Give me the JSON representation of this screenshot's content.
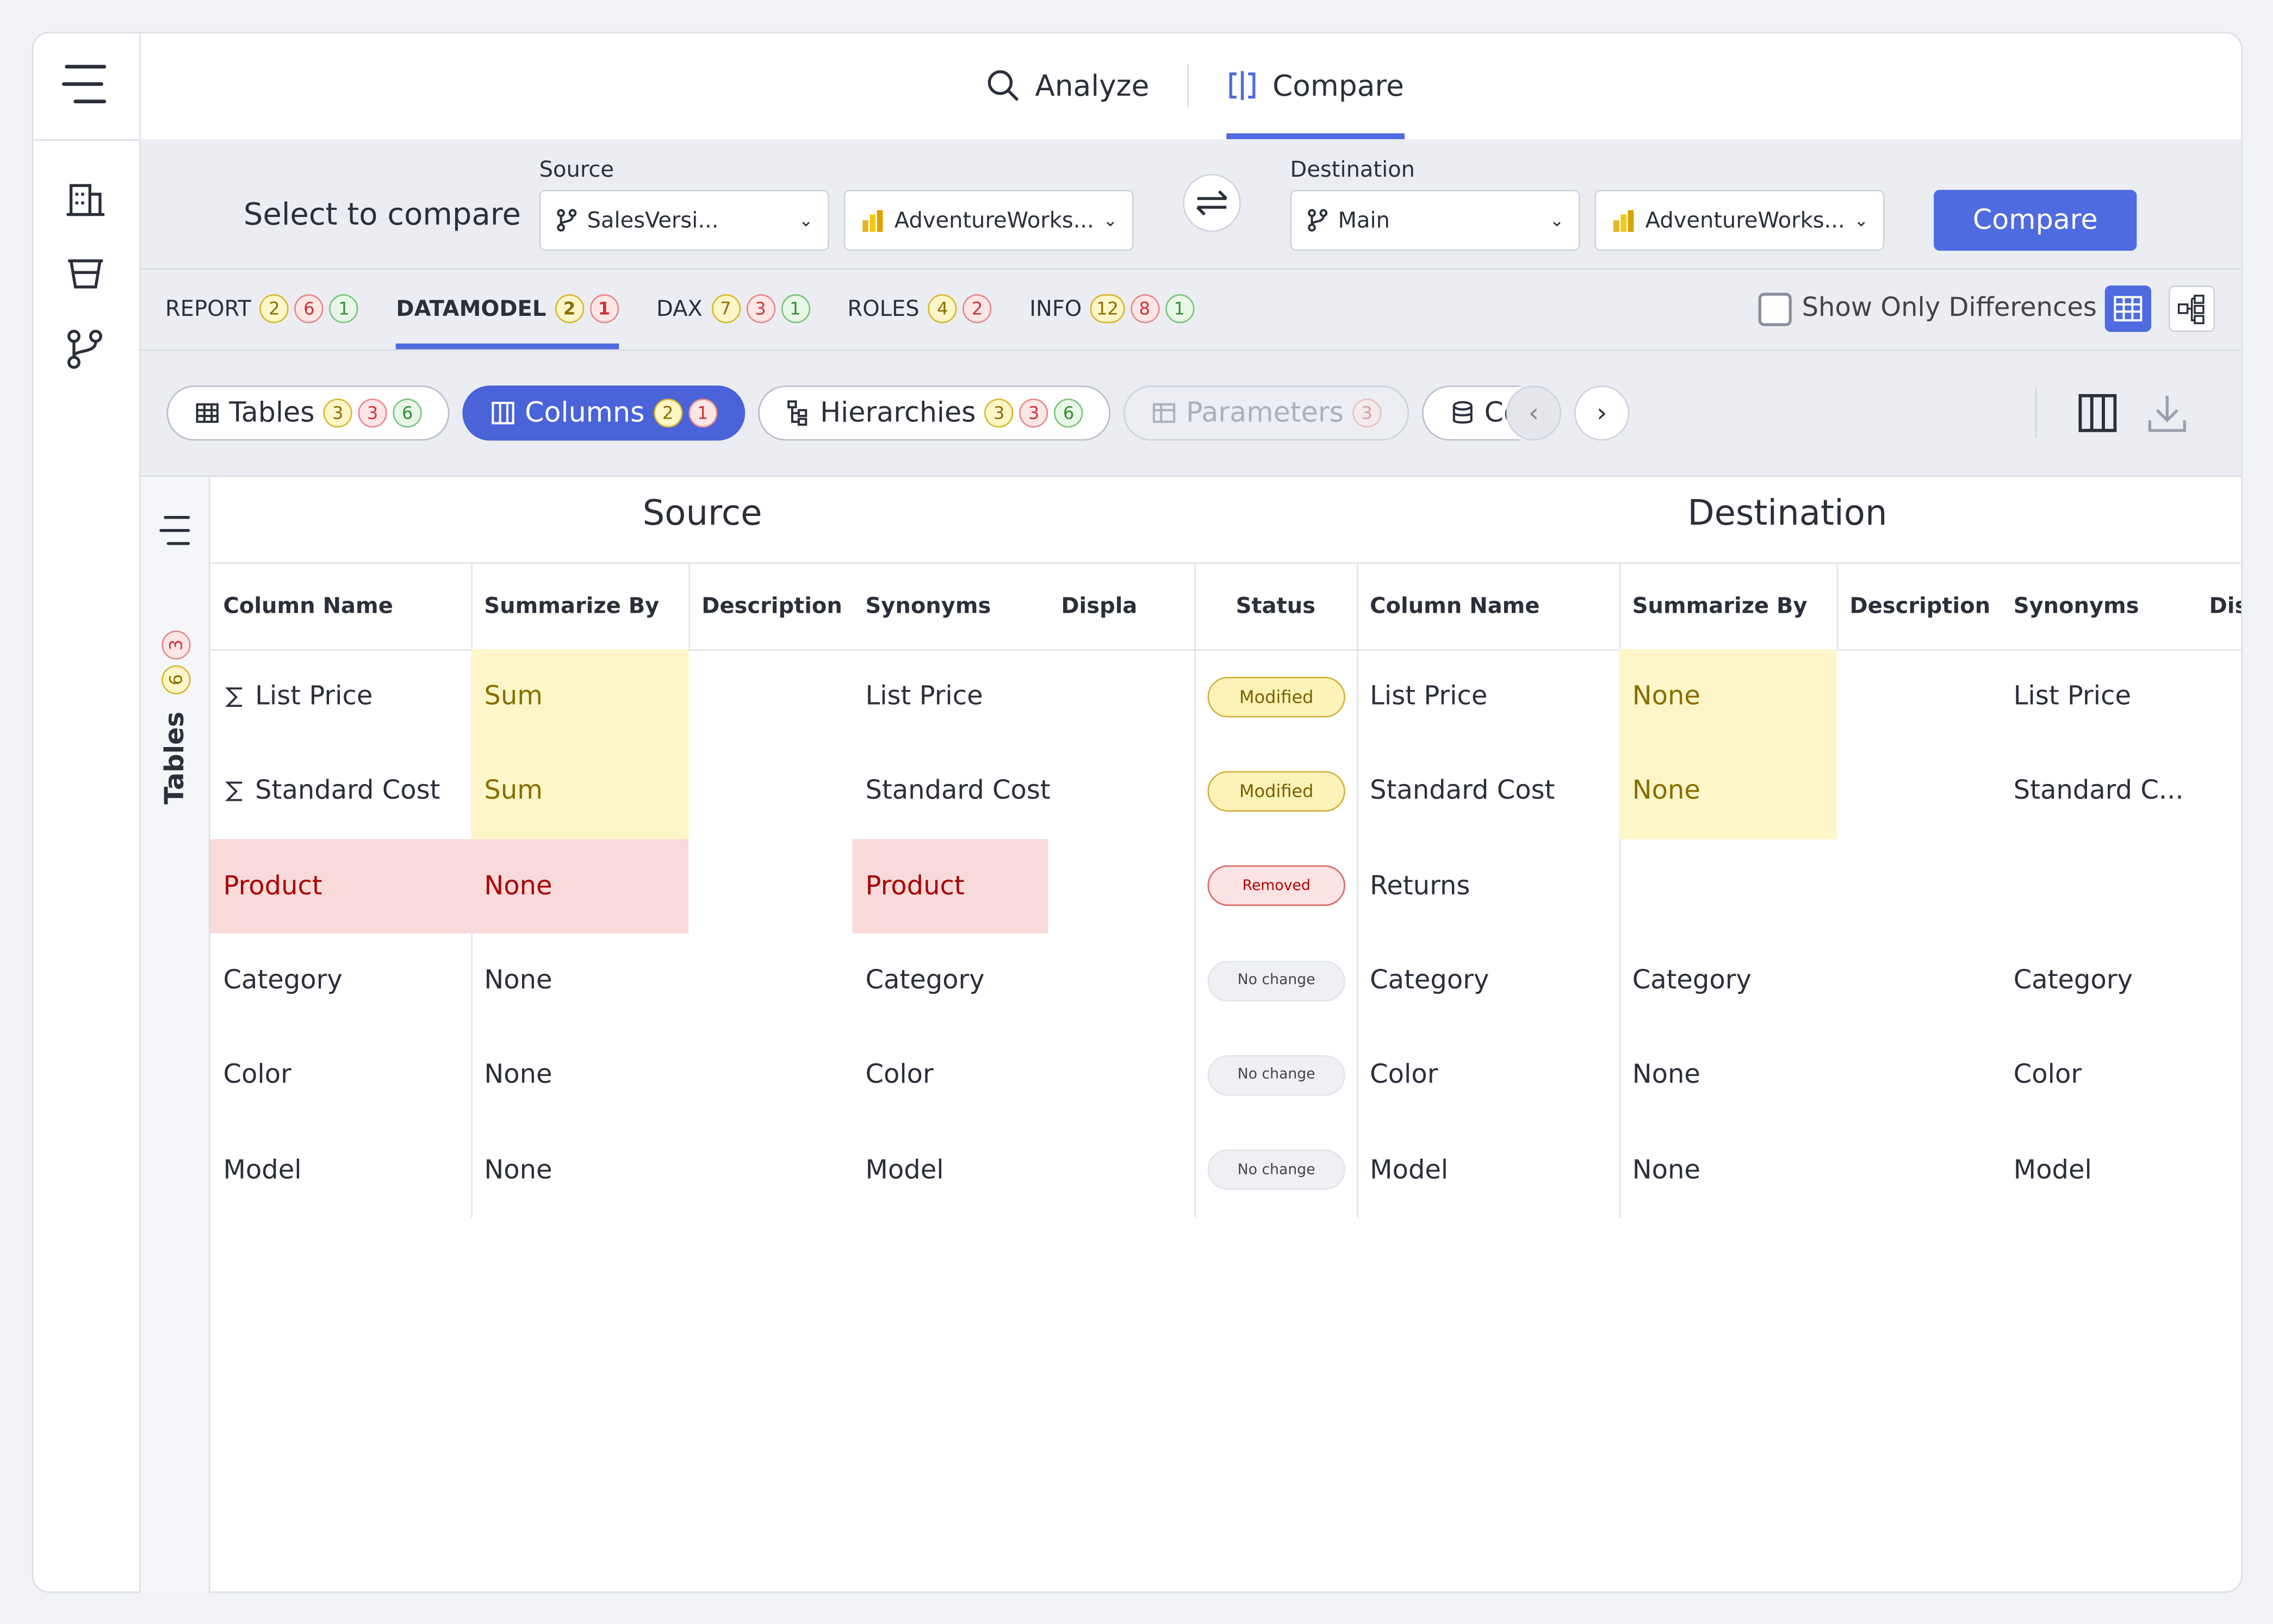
{
  "nav": {
    "tabs": [
      {
        "label": "Analyze"
      },
      {
        "label": "Compare",
        "active": true
      }
    ]
  },
  "toolbar": {
    "title": "Select to compare",
    "source_label": "Source",
    "source_branch": "SalesVersi...",
    "source_model": "AdventureWorks...",
    "destination_label": "Destination",
    "destination_branch": "Main",
    "destination_model": "AdventureWorks...",
    "button": "Compare"
  },
  "tabs": [
    {
      "label": "REPORT",
      "counts": {
        "modified": 2,
        "removed": 6,
        "added": 1
      }
    },
    {
      "label": "DATAMODEL",
      "active": true,
      "counts": {
        "modified": 2,
        "removed": 1
      }
    },
    {
      "label": "DAX",
      "counts": {
        "modified": 7,
        "removed": 3,
        "added": 1
      }
    },
    {
      "label": "ROLES",
      "counts": {
        "modified": 4,
        "removed": 2
      }
    },
    {
      "label": "INFO",
      "counts": {
        "modified": 12,
        "removed": 8,
        "added": 1
      }
    }
  ],
  "show_only_differences": "Show Only Differences",
  "subtabs": [
    {
      "label": "Tables",
      "counts": {
        "modified": 3,
        "removed": 3,
        "added": 6
      }
    },
    {
      "label": "Columns",
      "active": true,
      "counts": {
        "modified": 2,
        "removed": 1
      }
    },
    {
      "label": "Hierarchies",
      "counts": {
        "modified": 3,
        "removed": 3,
        "added": 6
      }
    },
    {
      "label": "Parameters",
      "disabled": true,
      "counts": {
        "removed": 3
      }
    },
    {
      "label": "Co"
    }
  ],
  "side_panel": {
    "label": "Tables",
    "counts": {
      "modified": 6,
      "removed": 3
    }
  },
  "grid": {
    "source_title": "Source",
    "destination_title": "Destination",
    "source_columns": [
      "Column Name",
      "Summarize By",
      "Description",
      "Synonyms",
      "Displa"
    ],
    "status_column": "Status",
    "destination_columns": [
      "Column Name",
      "Summarize By",
      "Description",
      "Synonyms",
      "Dis"
    ],
    "rows": [
      {
        "status": "Modified",
        "kind": "modified",
        "source": {
          "name": "List Price",
          "summarize_by": "Sum",
          "synonyms": "List Price",
          "measure": true
        },
        "destination": {
          "name": "List Price",
          "summarize_by": "None",
          "synonyms": "List Price"
        }
      },
      {
        "status": "Modified",
        "kind": "modified",
        "source": {
          "name": "Standard Cost",
          "summarize_by": "Sum",
          "synonyms": "Standard Cost",
          "measure": true
        },
        "destination": {
          "name": "Standard Cost",
          "summarize_by": "None",
          "synonyms": "Standard C..."
        }
      },
      {
        "status": "Removed",
        "kind": "removed",
        "source": {
          "name": "Product",
          "summarize_by": "None",
          "synonyms": "Product"
        },
        "destination": {
          "name": "Returns"
        }
      },
      {
        "status": "No change",
        "kind": "unchanged",
        "source": {
          "name": "Category",
          "summarize_by": "None",
          "synonyms": "Category"
        },
        "destination": {
          "name": "Category",
          "summarize_by": "Category",
          "synonyms": "Category"
        }
      },
      {
        "status": "No change",
        "kind": "unchanged",
        "source": {
          "name": "Color",
          "summarize_by": "None",
          "synonyms": "Color"
        },
        "destination": {
          "name": "Color",
          "summarize_by": "None",
          "synonyms": "Color"
        }
      },
      {
        "status": "No change",
        "kind": "unchanged",
        "source": {
          "name": "Model",
          "summarize_by": "None",
          "synonyms": "Model"
        },
        "destination": {
          "name": "Model",
          "summarize_by": "None",
          "synonyms": "Model"
        }
      }
    ]
  }
}
